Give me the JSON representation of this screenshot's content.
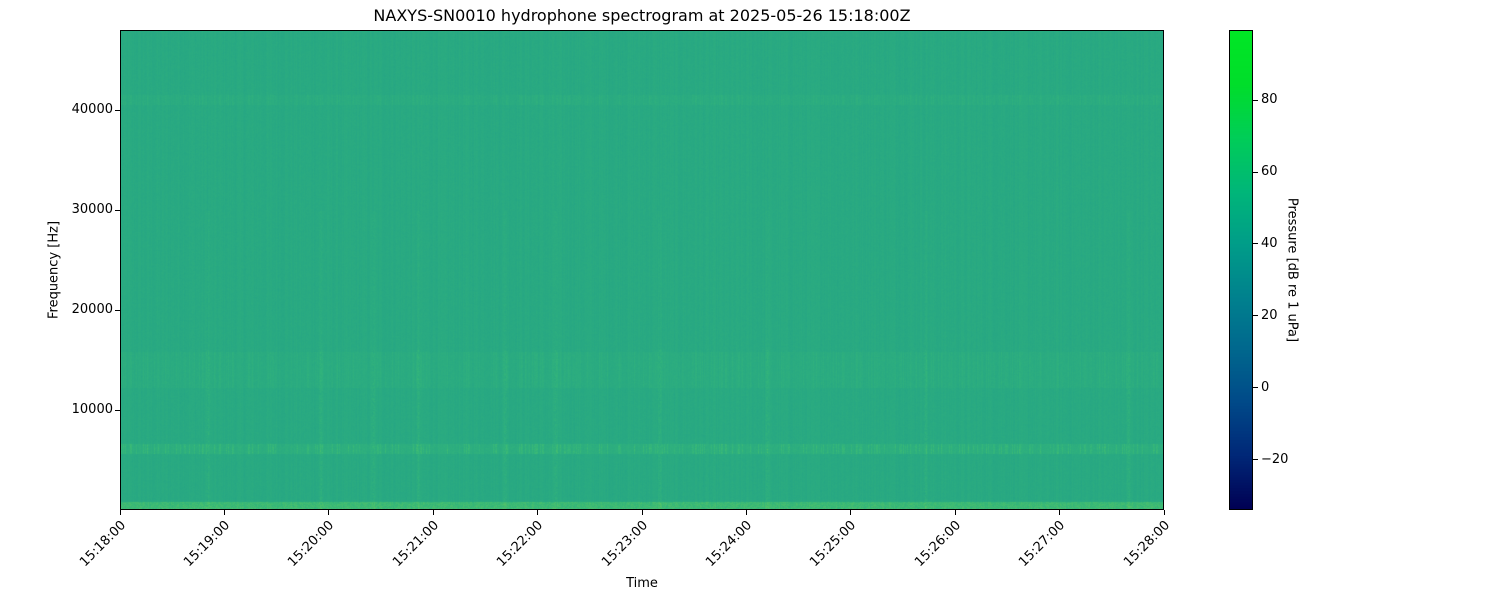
{
  "chart_data": {
    "type": "heatmap",
    "title": "NAXYS-SN0010 hydrophone spectrogram at 2025-05-26 15:18:00Z",
    "xlabel": "Time",
    "ylabel": "Frequency [Hz]",
    "colorbar_label": "Pressure [dB re 1 uPa]",
    "colormap": "viridis",
    "xlim": [
      "15:18:00",
      "15:28:00"
    ],
    "ylim": [
      0,
      48000
    ],
    "clim": [
      -34,
      99.5
    ],
    "x_ticks": [
      "15:18:00",
      "15:19:00",
      "15:20:00",
      "15:21:00",
      "15:22:00",
      "15:23:00",
      "15:24:00",
      "15:25:00",
      "15:26:00",
      "15:27:00",
      "15:28:00"
    ],
    "y_ticks": [
      10000,
      20000,
      30000,
      40000
    ],
    "colorbar_ticks": [
      -20,
      0,
      20,
      40,
      60,
      80
    ],
    "background_level_db": 47,
    "bands": [
      {
        "f_low": 0,
        "f_high": 800,
        "level_db": 58
      },
      {
        "f_low": 5600,
        "f_high": 6600,
        "level_db": 55
      },
      {
        "f_low": 12200,
        "f_high": 15800,
        "level_db": 50
      },
      {
        "f_low": 40600,
        "f_high": 41600,
        "level_db": 50
      }
    ],
    "transient_events": [
      "15:18:50",
      "15:19:55",
      "15:20:25",
      "15:20:51",
      "15:21:41",
      "15:22:10",
      "15:23:10",
      "15:24:12",
      "15:25:43",
      "15:27:40"
    ]
  }
}
